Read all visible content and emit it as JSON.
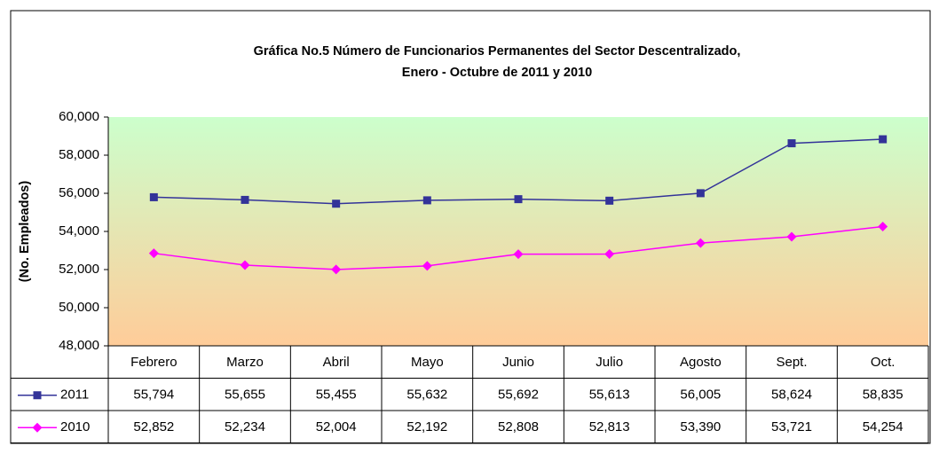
{
  "chart_data": {
    "type": "line",
    "title": "Gráfica No.5 Número de Funcionarios Permanentes del Sector Descentralizado,",
    "subtitle": "Enero - Octubre de 2011 y 2010",
    "y_label": "(No. Empleados)",
    "categories": [
      "Febrero",
      "Marzo",
      "Abril",
      "Mayo",
      "Junio",
      "Julio",
      "Agosto",
      "Sept.",
      "Oct."
    ],
    "series": [
      {
        "name": "2011",
        "color": "#333399",
        "marker": "square",
        "values": [
          55794,
          55655,
          55455,
          55632,
          55692,
          55613,
          56005,
          58624,
          58835
        ],
        "value_labels": [
          "55,794",
          "55,655",
          "55,455",
          "55,632",
          "55,692",
          "55,613",
          "56,005",
          "58,624",
          "58,835"
        ]
      },
      {
        "name": "2010",
        "color": "#ff00ff",
        "marker": "diamond",
        "values": [
          52852,
          52234,
          52004,
          52192,
          52808,
          52813,
          53390,
          53721,
          54254
        ],
        "value_labels": [
          "52,852",
          "52,234",
          "52,004",
          "52,192",
          "52,808",
          "52,813",
          "53,390",
          "53,721",
          "54,254"
        ]
      }
    ],
    "ylim": [
      48000,
      60000
    ],
    "yticks": [
      {
        "value": 48000,
        "label": "48,000"
      },
      {
        "value": 50000,
        "label": "50,000"
      },
      {
        "value": 52000,
        "label": "52,000"
      },
      {
        "value": 54000,
        "label": "54,000"
      },
      {
        "value": 56000,
        "label": "56,000"
      },
      {
        "value": 58000,
        "label": "58,000"
      },
      {
        "value": 60000,
        "label": "60,000"
      }
    ],
    "data_table": true
  }
}
